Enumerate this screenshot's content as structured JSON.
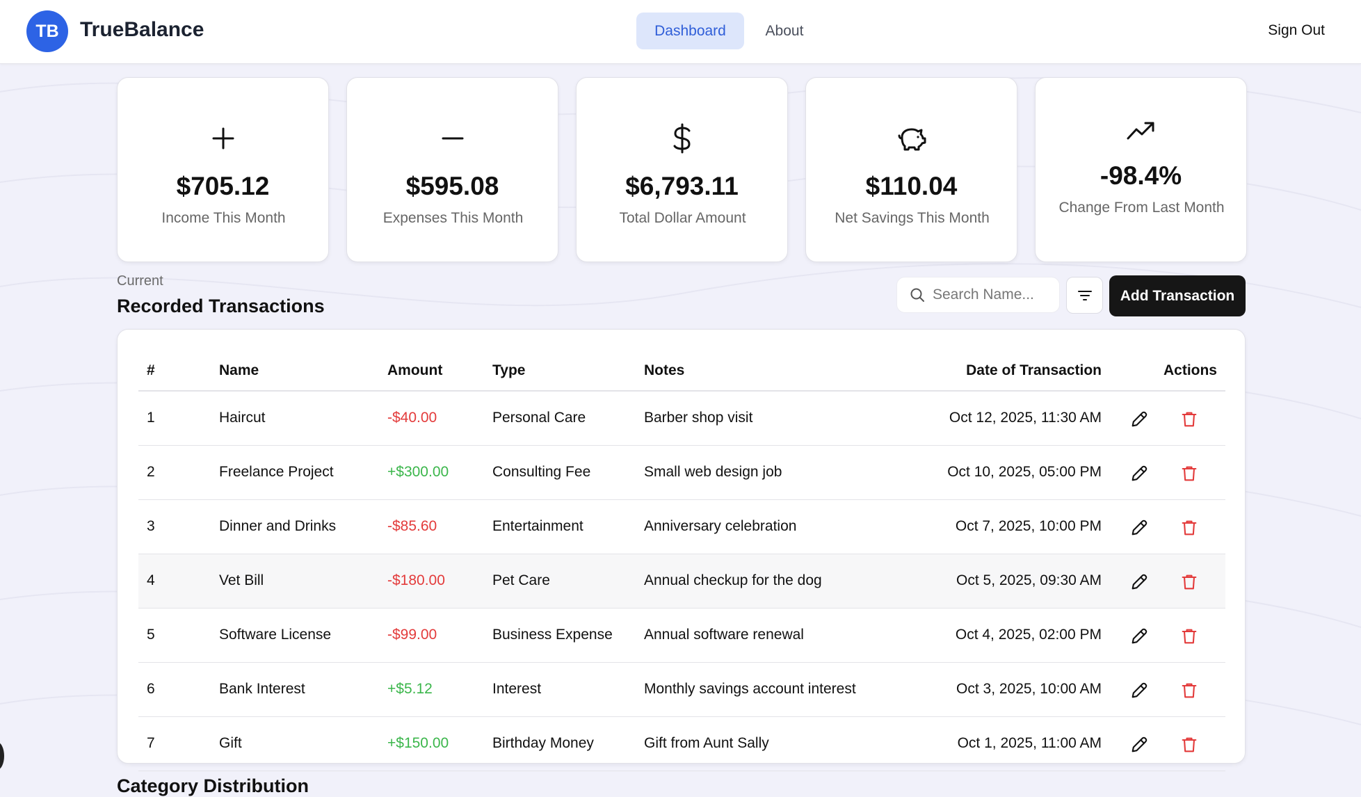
{
  "brand": {
    "initials": "TB",
    "name": "TrueBalance",
    "color": "#2d63e5"
  },
  "nav": {
    "tabs": [
      {
        "label": "Dashboard",
        "active": true
      },
      {
        "label": "About",
        "active": false
      }
    ],
    "sign_out": "Sign Out"
  },
  "summary_cards": [
    {
      "icon": "plus-icon",
      "value": "$705.12",
      "label": "Income This Month"
    },
    {
      "icon": "minus-icon",
      "value": "$595.08",
      "label": "Expenses This Month"
    },
    {
      "icon": "dollar-icon",
      "value": "$6,793.11",
      "label": "Total Dollar Amount"
    },
    {
      "icon": "piggy-bank-icon",
      "value": "$110.04",
      "label": "Net Savings This Month"
    },
    {
      "icon": "trending-up-icon",
      "value": "-98.4%",
      "label": "Change From Last Month"
    }
  ],
  "transactions": {
    "kicker": "Current",
    "title": "Recorded Transactions",
    "search_placeholder": "Search Name...",
    "add_button": "Add Transaction",
    "columns": [
      "#",
      "Name",
      "Amount",
      "Type",
      "Notes",
      "Date of Transaction",
      "Actions"
    ],
    "rows": [
      {
        "num": "1",
        "name": "Haircut",
        "amount": "-$40.00",
        "sign": "neg",
        "type": "Personal Care",
        "notes": "Barber shop visit",
        "date": "Oct 12, 2025, 11:30 AM"
      },
      {
        "num": "2",
        "name": "Freelance Project",
        "amount": "+$300.00",
        "sign": "pos",
        "type": "Consulting Fee",
        "notes": "Small web design job",
        "date": "Oct 10, 2025, 05:00 PM"
      },
      {
        "num": "3",
        "name": "Dinner and Drinks",
        "amount": "-$85.60",
        "sign": "neg",
        "type": "Entertainment",
        "notes": "Anniversary celebration",
        "date": "Oct 7, 2025, 10:00 PM"
      },
      {
        "num": "4",
        "name": "Vet Bill",
        "amount": "-$180.00",
        "sign": "neg",
        "type": "Pet Care",
        "notes": "Annual checkup for the dog",
        "date": "Oct 5, 2025, 09:30 AM"
      },
      {
        "num": "5",
        "name": "Software License",
        "amount": "-$99.00",
        "sign": "neg",
        "type": "Business Expense",
        "notes": "Annual software renewal",
        "date": "Oct 4, 2025, 02:00 PM"
      },
      {
        "num": "6",
        "name": "Bank Interest",
        "amount": "+$5.12",
        "sign": "pos",
        "type": "Interest",
        "notes": "Monthly savings account interest",
        "date": "Oct 3, 2025, 10:00 AM"
      },
      {
        "num": "7",
        "name": "Gift",
        "amount": "+$150.00",
        "sign": "pos",
        "type": "Birthday Money",
        "notes": "Gift from Aunt Sally",
        "date": "Oct 1, 2025, 11:00 AM"
      }
    ]
  },
  "category_section": {
    "title": "Category Distribution"
  }
}
